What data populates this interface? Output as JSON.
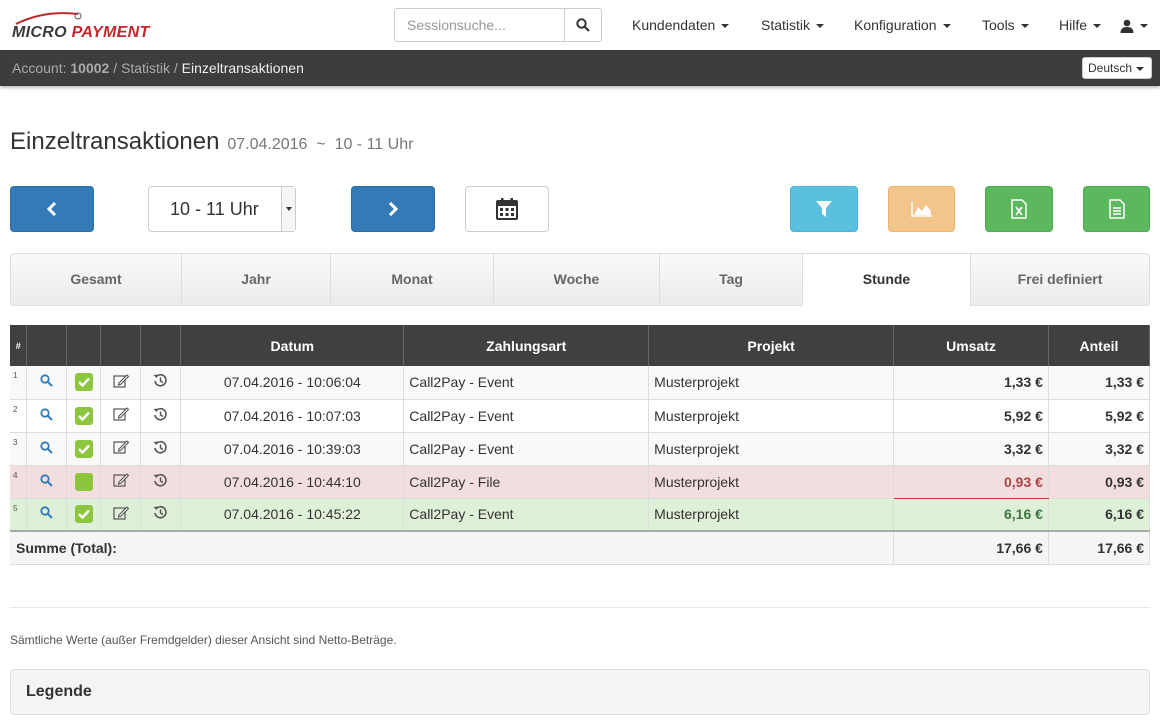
{
  "brand": {
    "name_part1": "MICRO",
    "name_part2": "PAYMENT",
    "accent": "#c0282d"
  },
  "search": {
    "placeholder": "Sessionsuche..."
  },
  "nav": {
    "items": [
      "Kundendaten",
      "Statistik",
      "Konfiguration",
      "Tools",
      "Hilfe"
    ],
    "user_icon": "user-icon"
  },
  "breadcrumb": {
    "account_label": "Account:",
    "account_id": "10002",
    "section": "Statistik",
    "current": "Einzeltransaktionen"
  },
  "language": "Deutsch",
  "page": {
    "title": "Einzeltransaktionen",
    "date": "07.04.2016",
    "separator": "~",
    "hour_range": "10 - 11 Uhr"
  },
  "toolbar": {
    "hour_select_value": "10 - 11 Uhr",
    "icons": [
      "chevron-left-icon",
      "chevron-right-icon",
      "calendar-icon",
      "filter-icon",
      "area-chart-icon",
      "excel-export-icon",
      "document-export-icon"
    ]
  },
  "tabs": [
    "Gesamt",
    "Jahr",
    "Monat",
    "Woche",
    "Tag",
    "Stunde",
    "Frei definiert"
  ],
  "active_tab": "Stunde",
  "table": {
    "columns": [
      "#",
      "",
      "",
      "",
      "",
      "Datum",
      "Zahlungsart",
      "Projekt",
      "Umsatz",
      "Anteil"
    ],
    "rows": [
      {
        "n": "1",
        "checked": true,
        "datum": "07.04.2016 - 10:06:04",
        "zahlungsart": "Call2Pay - Event",
        "projekt": "Musterprojekt",
        "umsatz": "1,33 €",
        "anteil": "1,33 €",
        "status": "normal"
      },
      {
        "n": "2",
        "checked": true,
        "datum": "07.04.2016 - 10:07:03",
        "zahlungsart": "Call2Pay - Event",
        "projekt": "Musterprojekt",
        "umsatz": "5,92 €",
        "anteil": "5,92 €",
        "status": "normal"
      },
      {
        "n": "3",
        "checked": true,
        "datum": "07.04.2016 - 10:39:03",
        "zahlungsart": "Call2Pay - Event",
        "projekt": "Musterprojekt",
        "umsatz": "3,32 €",
        "anteil": "3,32 €",
        "status": "normal"
      },
      {
        "n": "4",
        "checked": false,
        "datum": "07.04.2016 - 10:44:10",
        "zahlungsart": "Call2Pay - File",
        "projekt": "Musterprojekt",
        "umsatz": "0,93 €",
        "anteil": "0,93 €",
        "status": "danger"
      },
      {
        "n": "5",
        "checked": true,
        "datum": "07.04.2016 - 10:45:22",
        "zahlungsart": "Call2Pay - Event",
        "projekt": "Musterprojekt",
        "umsatz": "6,16 €",
        "anteil": "6,16 €",
        "status": "success"
      }
    ],
    "total_label": "Summe (Total):",
    "total_umsatz": "17,66 €",
    "total_anteil": "17,66 €"
  },
  "footer": {
    "note": "Sämtliche Werte (außer Fremdgelder) dieser Ansicht sind Netto-Beträge.",
    "legend_title": "Legende"
  }
}
